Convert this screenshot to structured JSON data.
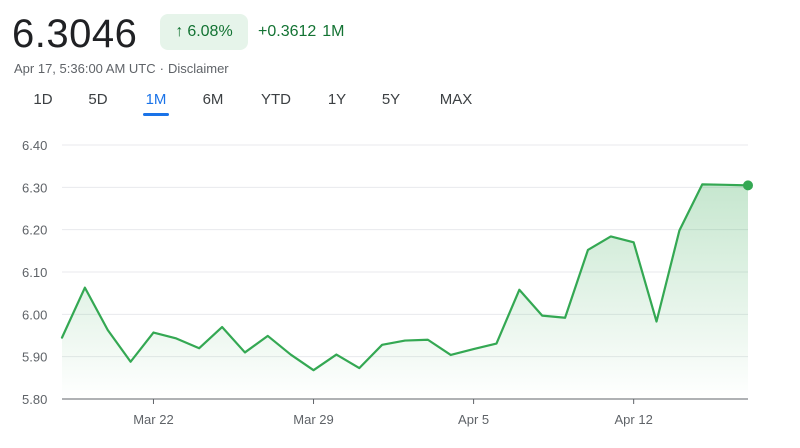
{
  "quote": {
    "price": "6.3046",
    "change_percent": "6.08%",
    "change_arrow_icon": "arrow-up-icon",
    "change_abs": "+0.3612",
    "change_period": "1M",
    "timestamp": "Apr 17, 5:36:00 AM UTC",
    "separator": "·",
    "disclaimer": "Disclaimer"
  },
  "ranges": {
    "items": [
      "1D",
      "5D",
      "1M",
      "6M",
      "YTD",
      "1Y",
      "5Y",
      "MAX"
    ],
    "selected": "1M"
  },
  "colors": {
    "positive": "#137333",
    "line": "#34a853",
    "fill": "#e6f4ea",
    "selected_tab": "#1a73e8"
  },
  "chart_data": {
    "type": "area",
    "x": [
      "Mar 18",
      "Mar 19",
      "Mar 20",
      "Mar 21",
      "Mar 22",
      "Mar 23",
      "Mar 24",
      "Mar 25",
      "Mar 26",
      "Mar 27",
      "Mar 28",
      "Mar 29",
      "Mar 30",
      "Mar 31",
      "Apr 1",
      "Apr 2",
      "Apr 3",
      "Apr 4",
      "Apr 5",
      "Apr 6",
      "Apr 7",
      "Apr 8",
      "Apr 9",
      "Apr 10",
      "Apr 11",
      "Apr 12",
      "Apr 13",
      "Apr 14",
      "Apr 15",
      "Apr 16",
      "Apr 17"
    ],
    "values": [
      5.945,
      6.063,
      5.963,
      5.888,
      5.957,
      5.943,
      5.92,
      5.97,
      5.91,
      5.949,
      5.905,
      5.868,
      5.905,
      5.873,
      5.928,
      5.938,
      5.94,
      5.904,
      5.918,
      5.931,
      6.058,
      5.997,
      5.992,
      6.152,
      6.184,
      6.17,
      5.983,
      6.198,
      6.307,
      6.306,
      6.3046
    ],
    "x_ticks": [
      "Mar 22",
      "Mar 29",
      "Apr 5",
      "Apr 12"
    ],
    "y_ticks": [
      "5.80",
      "5.90",
      "6.00",
      "6.10",
      "6.20",
      "6.30",
      "6.40"
    ],
    "ylim": [
      5.8,
      6.4
    ],
    "grid": true,
    "title": "",
    "xlabel": "",
    "ylabel": ""
  }
}
